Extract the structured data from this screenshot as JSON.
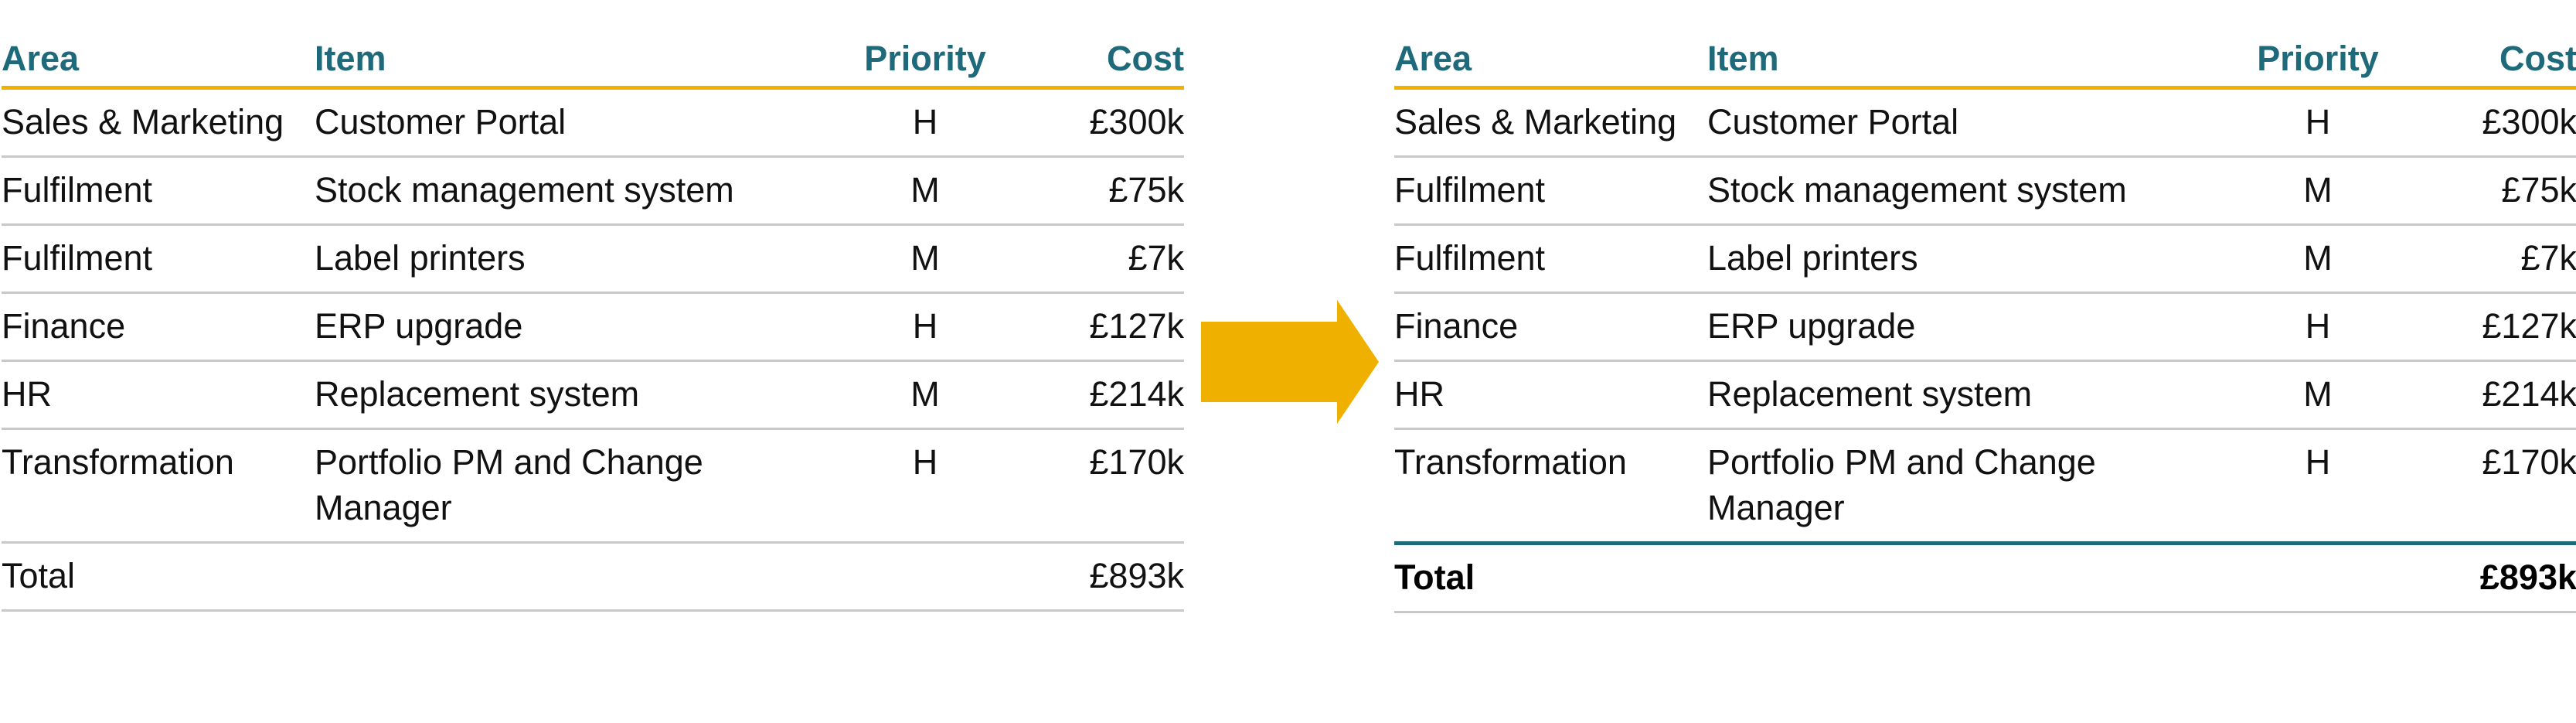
{
  "headers": {
    "area": "Area",
    "item": "Item",
    "priority": "Priority",
    "cost": "Cost"
  },
  "rows": [
    {
      "area": "Sales & Marketing",
      "item": "Customer Portal",
      "priority": "H",
      "cost": "£300k"
    },
    {
      "area": "Fulfilment",
      "item": "Stock management system",
      "priority": "M",
      "cost": "£75k"
    },
    {
      "area": "Fulfilment",
      "item": "Label printers",
      "priority": "M",
      "cost": "£7k"
    },
    {
      "area": "Finance",
      "item": "ERP upgrade",
      "priority": "H",
      "cost": "£127k"
    },
    {
      "area": "HR",
      "item": "Replacement system",
      "priority": "M",
      "cost": "£214k"
    },
    {
      "area": "Transformation",
      "item": "Portfolio PM and Change Manager",
      "priority": "H",
      "cost": "£170k"
    }
  ],
  "total": {
    "label": "Total",
    "cost": "£893k"
  },
  "colors": {
    "header_text": "#1e6a7a",
    "header_rule": "#f0b000",
    "row_rule": "#c8c8c8",
    "total_rule": "#1e6a7a",
    "arrow": "#f0b000"
  },
  "icons": {
    "arrow": "right-arrow-icon"
  }
}
